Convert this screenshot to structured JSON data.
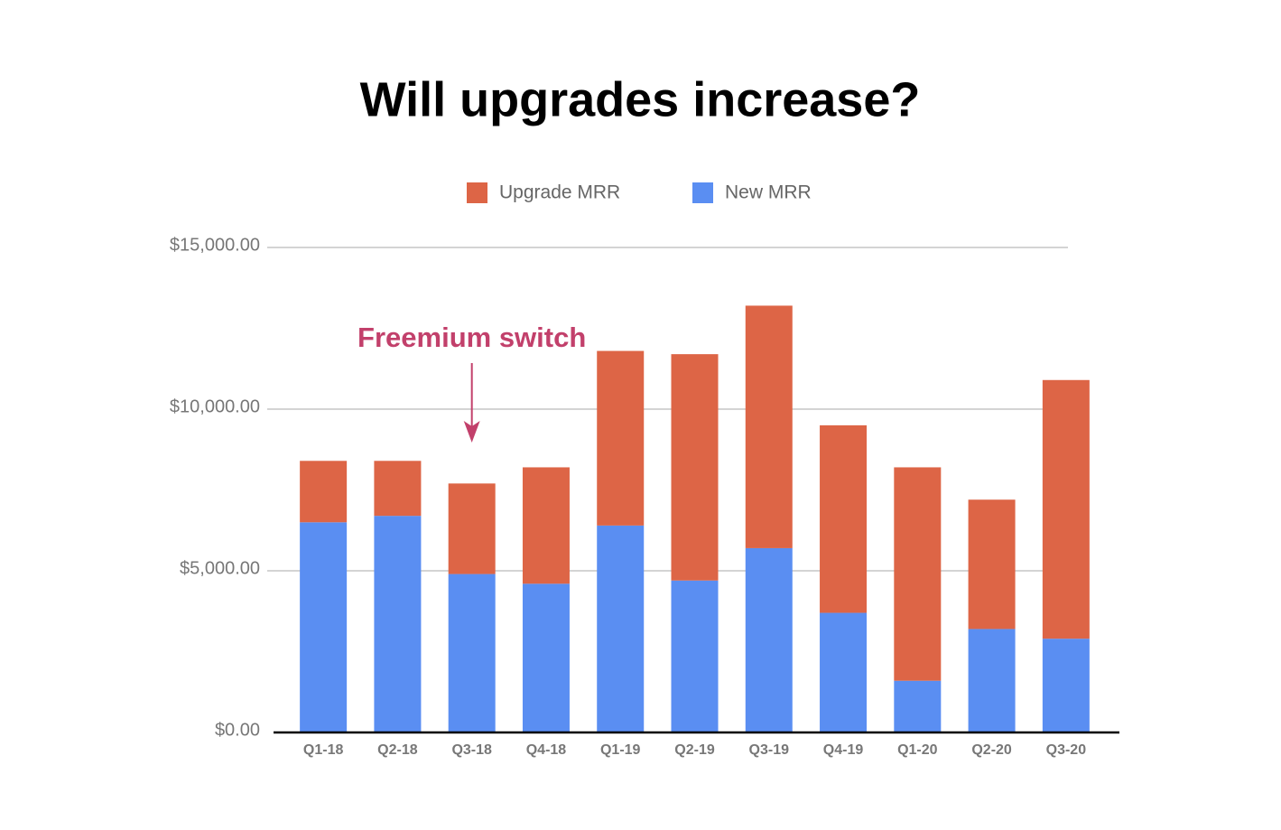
{
  "chart_data": {
    "type": "stacked_bar",
    "title": "Will upgrades increase?",
    "annotation": "Freemium switch",
    "categories": [
      "Q1-18",
      "Q2-18",
      "Q3-18",
      "Q4-18",
      "Q1-19",
      "Q2-19",
      "Q3-19",
      "Q4-19",
      "Q1-20",
      "Q2-20",
      "Q3-20"
    ],
    "series": [
      {
        "name": "New MRR",
        "color": "#5a8ef2",
        "values": [
          6500,
          6700,
          4900,
          4600,
          6400,
          4700,
          5700,
          3700,
          1600,
          3200,
          2900
        ]
      },
      {
        "name": "Upgrade MRR",
        "color": "#dd6546",
        "values": [
          1900,
          1700,
          2800,
          3600,
          5400,
          7000,
          7500,
          5800,
          6600,
          4000,
          8000
        ]
      }
    ],
    "ylim": [
      0,
      15000
    ],
    "yticks": [
      {
        "value": 0,
        "label": "$0.00"
      },
      {
        "value": 5000,
        "label": "$5,000.00"
      },
      {
        "value": 10000,
        "label": "$10,000.00"
      },
      {
        "value": 15000,
        "label": "$15,000.00"
      }
    ],
    "grid": true
  }
}
